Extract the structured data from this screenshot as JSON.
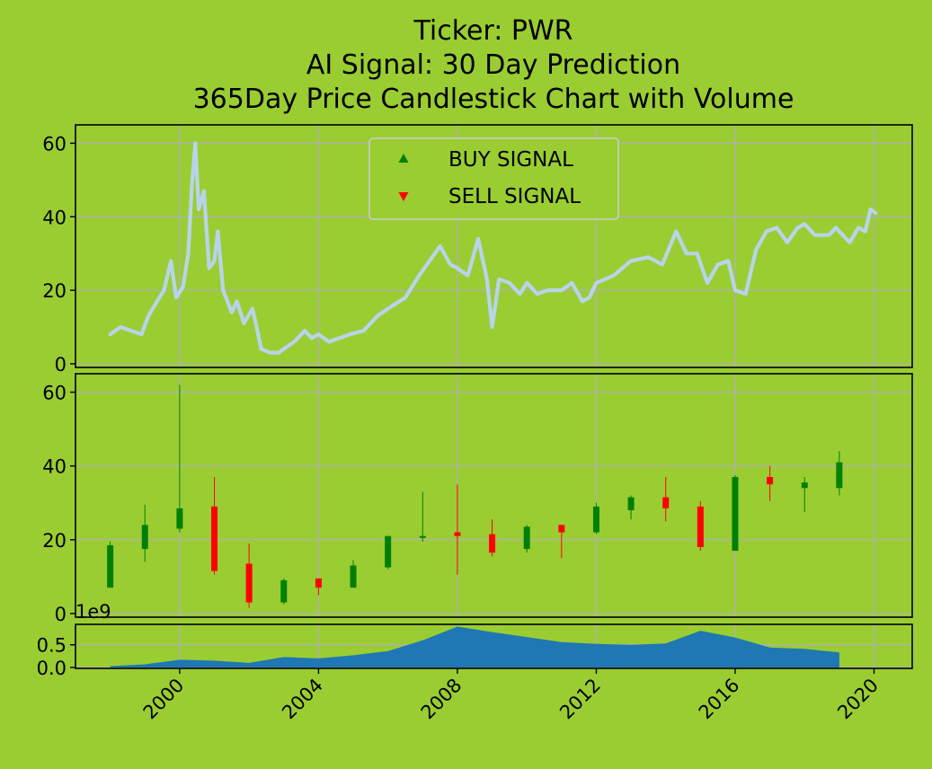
{
  "colors": {
    "background": "#9acd32",
    "price_line": "#b8d4ea",
    "up_candle": "#008000",
    "down_candle": "#ff0000",
    "volume_fill": "#1f77b4",
    "grid": "#b0b0b0",
    "buy_marker": "#008000",
    "sell_marker": "#ff0000"
  },
  "chart_data": {
    "type": "candlestick",
    "title": [
      "Ticker: PWR",
      "AI Signal: 30 Day Prediction",
      "365Day Price Candlestick Chart with Volume"
    ],
    "xlim": [
      1997.0,
      2021.1
    ],
    "x_ticks": [
      2000,
      2004,
      2008,
      2012,
      2016,
      2020
    ],
    "x_tick_labels": [
      "2000",
      "2004",
      "2008",
      "2012",
      "2016",
      "2020"
    ],
    "grid": true,
    "legend": {
      "placement": "upper center",
      "entries": [
        {
          "label": "BUY SIGNAL",
          "marker": "triangle-up",
          "color": "#008000"
        },
        {
          "label": "SELL SIGNAL",
          "marker": "triangle-down",
          "color": "#ff0000"
        }
      ]
    },
    "price_panel": {
      "ylim": [
        -1,
        65
      ],
      "y_ticks": [
        0,
        20,
        40,
        60
      ],
      "y_tick_labels": [
        "0",
        "20",
        "40",
        "60"
      ],
      "series": {
        "x": [
          1998.0,
          1998.3,
          1998.6,
          1998.9,
          1999.1,
          1999.35,
          1999.55,
          1999.75,
          1999.9,
          2000.1,
          2000.25,
          2000.35,
          2000.45,
          2000.55,
          2000.7,
          2000.85,
          2001.0,
          2001.1,
          2001.25,
          2001.5,
          2001.65,
          2001.85,
          2002.1,
          2002.35,
          2002.6,
          2002.85,
          2003.0,
          2003.3,
          2003.6,
          2003.8,
          2004.0,
          2004.3,
          2004.6,
          2004.9,
          2005.3,
          2005.7,
          2006.0,
          2006.5,
          2006.9,
          2007.2,
          2007.5,
          2007.8,
          2008.0,
          2008.3,
          2008.6,
          2008.85,
          2009.0,
          2009.2,
          2009.5,
          2009.8,
          2010.0,
          2010.3,
          2010.6,
          2011.0,
          2011.3,
          2011.6,
          2011.8,
          2012.0,
          2012.5,
          2013.0,
          2013.5,
          2013.9,
          2014.3,
          2014.6,
          2014.9,
          2015.2,
          2015.5,
          2015.8,
          2016.0,
          2016.3,
          2016.6,
          2016.9,
          2017.2,
          2017.5,
          2017.8,
          2018.0,
          2018.3,
          2018.7,
          2018.9,
          2019.1,
          2019.3,
          2019.55,
          2019.75,
          2019.9,
          2020.05
        ],
        "y": [
          8,
          10,
          9,
          8,
          13,
          17,
          20,
          28,
          18,
          21,
          30,
          48,
          60,
          42,
          47,
          26,
          28,
          36,
          20,
          14,
          17,
          11,
          15,
          4,
          3,
          3,
          4,
          6,
          9,
          7,
          8,
          6,
          7,
          8,
          9,
          13,
          15,
          18,
          24,
          28,
          32,
          27,
          26,
          24,
          34,
          23,
          10,
          23,
          22,
          19,
          22,
          19,
          20,
          20,
          22,
          17,
          18,
          22,
          24,
          28,
          29,
          27,
          36,
          30,
          30,
          22,
          27,
          28,
          20,
          19,
          31,
          36,
          37,
          33,
          37,
          38,
          35,
          35,
          37,
          35,
          33,
          37,
          36,
          42,
          41
        ]
      },
      "buy_signals": [],
      "sell_signals": []
    },
    "candle_panel": {
      "ylim": [
        -1,
        65
      ],
      "y_ticks": [
        0,
        20,
        40,
        60
      ],
      "y_tick_labels": [
        "0",
        "20",
        "40",
        "60"
      ],
      "candles": [
        {
          "x": 1998.0,
          "open": 7,
          "high": 19.5,
          "low": 7,
          "close": 18.5
        },
        {
          "x": 1999.0,
          "open": 17.5,
          "high": 29.5,
          "low": 14,
          "close": 24
        },
        {
          "x": 2000.0,
          "open": 23,
          "high": 62,
          "low": 22,
          "close": 28.5
        },
        {
          "x": 2001.0,
          "open": 29,
          "high": 37,
          "low": 10.5,
          "close": 11.5
        },
        {
          "x": 2002.0,
          "open": 13.5,
          "high": 19,
          "low": 1.5,
          "close": 3
        },
        {
          "x": 2003.0,
          "open": 3,
          "high": 9.5,
          "low": 2.5,
          "close": 9
        },
        {
          "x": 2004.0,
          "open": 9.5,
          "high": 9.5,
          "low": 5,
          "close": 7
        },
        {
          "x": 2005.0,
          "open": 7,
          "high": 14.5,
          "low": 7,
          "close": 13
        },
        {
          "x": 2006.0,
          "open": 12.5,
          "high": 21,
          "low": 12,
          "close": 21
        },
        {
          "x": 2007.0,
          "open": 20.5,
          "high": 33,
          "low": 19.5,
          "close": 21
        },
        {
          "x": 2008.0,
          "open": 22,
          "high": 35,
          "low": 10.5,
          "close": 21
        },
        {
          "x": 2009.0,
          "open": 21.5,
          "high": 25.5,
          "low": 15.5,
          "close": 16.5
        },
        {
          "x": 2010.0,
          "open": 17.5,
          "high": 24,
          "low": 16.5,
          "close": 23.5
        },
        {
          "x": 2011.0,
          "open": 24,
          "high": 24,
          "low": 15,
          "close": 22
        },
        {
          "x": 2012.0,
          "open": 22,
          "high": 30,
          "low": 21.5,
          "close": 29
        },
        {
          "x": 2013.0,
          "open": 28,
          "high": 32,
          "low": 25.5,
          "close": 31.5
        },
        {
          "x": 2014.0,
          "open": 31.5,
          "high": 37,
          "low": 25,
          "close": 28.5
        },
        {
          "x": 2015.0,
          "open": 29,
          "high": 30.5,
          "low": 17,
          "close": 18
        },
        {
          "x": 2016.0,
          "open": 17,
          "high": 37.5,
          "low": 17,
          "close": 37
        },
        {
          "x": 2017.0,
          "open": 37,
          "high": 40,
          "low": 30.5,
          "close": 35
        },
        {
          "x": 2018.0,
          "open": 34,
          "high": 37,
          "low": 27.5,
          "close": 35.5
        },
        {
          "x": 2019.0,
          "open": 34,
          "high": 44,
          "low": 32,
          "close": 41
        }
      ]
    },
    "volume_panel": {
      "ylim": [
        -0.02,
        0.95
      ],
      "y_ticks": [
        0.0,
        0.5
      ],
      "y_tick_labels": [
        "0.0",
        "0.5"
      ],
      "scale_label": "1e9",
      "x": [
        1998.0,
        1999.0,
        2000.0,
        2001.0,
        2002.0,
        2003.0,
        2004.0,
        2005.0,
        2006.0,
        2007.0,
        2008.0,
        2009.0,
        2010.0,
        2011.0,
        2012.0,
        2013.0,
        2014.0,
        2015.0,
        2016.0,
        2017.0,
        2018.0,
        2019.0
      ],
      "values": [
        0.03,
        0.07,
        0.17,
        0.15,
        0.1,
        0.23,
        0.2,
        0.27,
        0.36,
        0.6,
        0.9,
        0.78,
        0.67,
        0.56,
        0.52,
        0.5,
        0.53,
        0.81,
        0.66,
        0.44,
        0.41,
        0.33
      ]
    }
  }
}
